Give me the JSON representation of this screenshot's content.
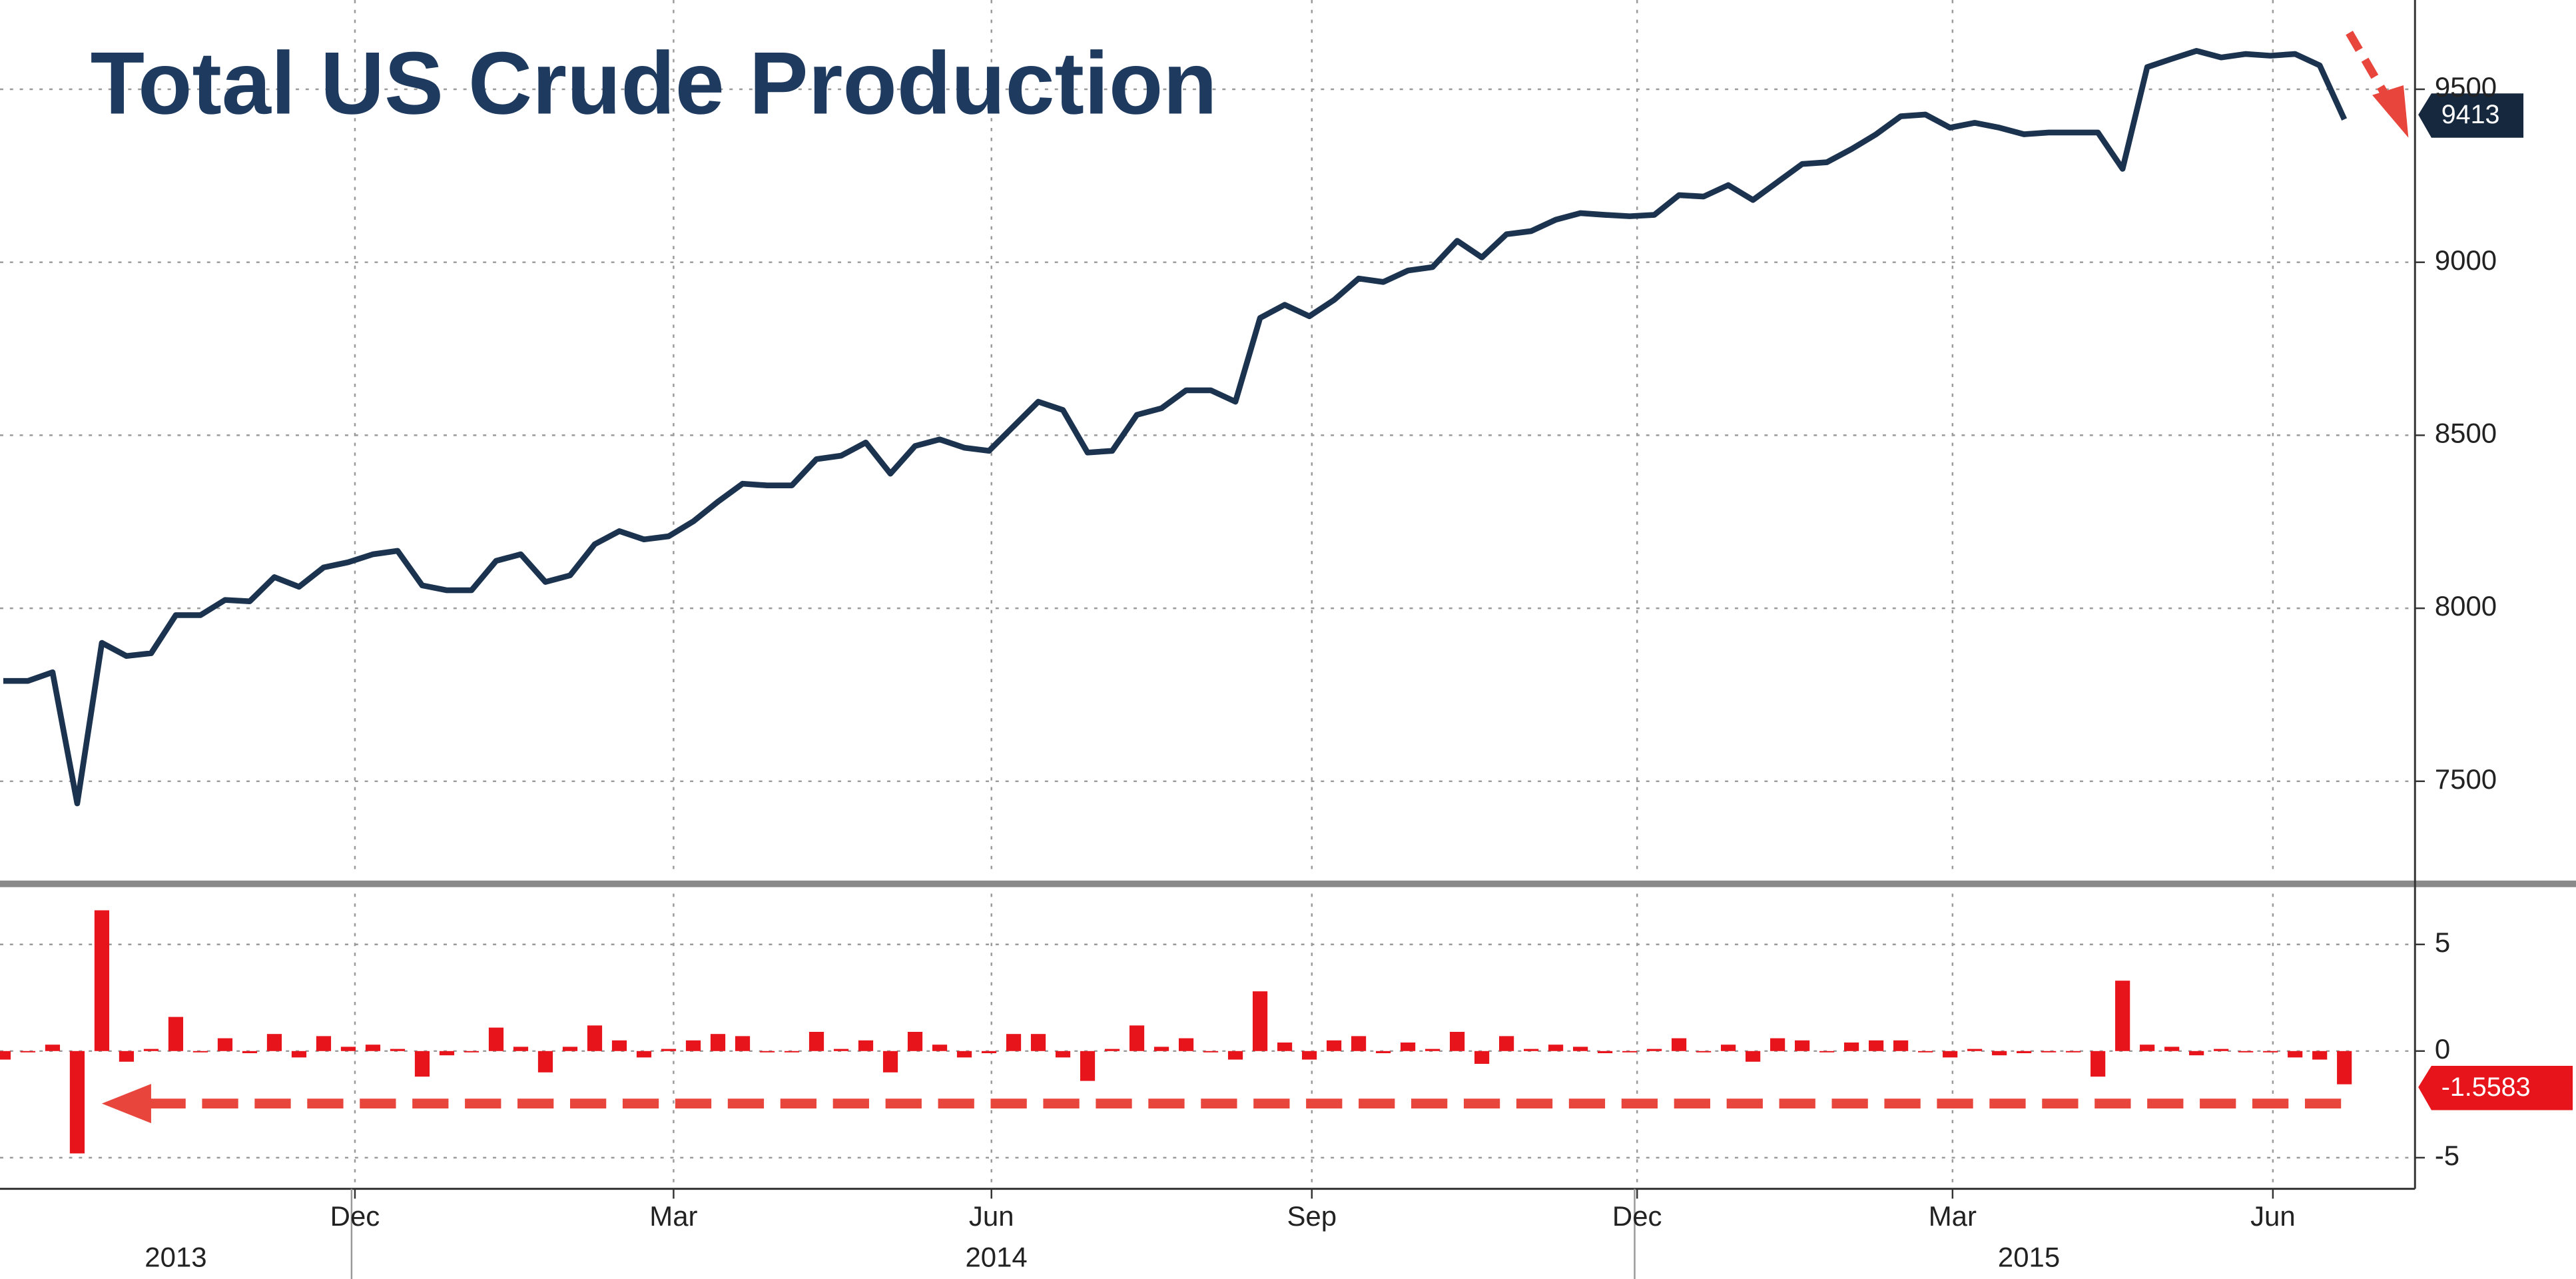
{
  "chart_data": [
    {
      "type": "line",
      "title": "Total US Crude Production",
      "color": "#1c3350",
      "categories": [
        null,
        null,
        null,
        null,
        null,
        null,
        null,
        null,
        null,
        null,
        null,
        null,
        null,
        null,
        null,
        null,
        null,
        null,
        null,
        null,
        null,
        null,
        null,
        null,
        null,
        null,
        null,
        null,
        null,
        null,
        null,
        null,
        null,
        null,
        null,
        null,
        null,
        null,
        null,
        null,
        null,
        null,
        null,
        null,
        null,
        null,
        null,
        null,
        null,
        null,
        null,
        null,
        null,
        null,
        null,
        null,
        null,
        null,
        null,
        null,
        null,
        null,
        null,
        null,
        null,
        null,
        null,
        null,
        null,
        null,
        null,
        null,
        null,
        null,
        null,
        null,
        null,
        null,
        null,
        null,
        null,
        null,
        null,
        null,
        null,
        null,
        null,
        null,
        null,
        null,
        null,
        null,
        null,
        null,
        null,
        null
      ],
      "values": [
        7790,
        7790,
        7815,
        7436,
        7900,
        7862,
        7870,
        7980,
        7980,
        8024,
        8020,
        8090,
        8062,
        8118,
        8133,
        8156,
        8166,
        8066,
        8052,
        8052,
        8137,
        8156,
        8076,
        8095,
        8185,
        8223,
        8199,
        8208,
        8251,
        8308,
        8360,
        8355,
        8355,
        8431,
        8441,
        8479,
        8389,
        8469,
        8488,
        8464,
        8455,
        8526,
        8597,
        8573,
        8450,
        8455,
        8559,
        8578,
        8630,
        8630,
        8597,
        8839,
        8877,
        8844,
        8891,
        8953,
        8943,
        8976,
        8986,
        9062,
        9014,
        9081,
        9090,
        9123,
        9142,
        9137,
        9133,
        9137,
        9194,
        9190,
        9223,
        9180,
        9232,
        9284,
        9289,
        9327,
        9370,
        9422,
        9427,
        9389,
        9403,
        9389,
        9370,
        9375,
        9375,
        9375,
        9270,
        9564,
        9588,
        9611,
        9592,
        9602,
        9597,
        9602,
        9569,
        9413
      ],
      "ylim": [
        7232,
        9758
      ],
      "yticks": [
        7500,
        8000,
        8500,
        9000,
        9500
      ],
      "grid": true
    },
    {
      "type": "bar",
      "color": "#e8141c",
      "categories": [
        null,
        null,
        null,
        null,
        null,
        null,
        null,
        null,
        null,
        null,
        null,
        null,
        null,
        null,
        null,
        null,
        null,
        null,
        null,
        null,
        null,
        null,
        null,
        null,
        null,
        null,
        null,
        null,
        null,
        null,
        null,
        null,
        null,
        null,
        null,
        null,
        null,
        null,
        null,
        null,
        null,
        null,
        null,
        null,
        null,
        null,
        null,
        null,
        null,
        null,
        null,
        null,
        null,
        null,
        null,
        null,
        null,
        null,
        null,
        null,
        null,
        null,
        null,
        null,
        null,
        null,
        null,
        null,
        null,
        null,
        null,
        null,
        null,
        null,
        null,
        null,
        null,
        null,
        null,
        null,
        null,
        null,
        null,
        null,
        null,
        null,
        null,
        null,
        null,
        null,
        null,
        null,
        null,
        null,
        null,
        null
      ],
      "values": [
        -0.4,
        0,
        0.3,
        -4.8,
        6.6,
        -0.5,
        0.1,
        1.6,
        0,
        0.6,
        -0.1,
        0.8,
        -0.3,
        0.7,
        0.2,
        0.3,
        0.1,
        -1.2,
        -0.2,
        0,
        1.1,
        0.2,
        -1.0,
        0.2,
        1.2,
        0.5,
        -0.3,
        0.1,
        0.5,
        0.8,
        0.7,
        0,
        0,
        0.9,
        0.1,
        0.5,
        -1.0,
        0.9,
        0.3,
        -0.3,
        -0.1,
        0.8,
        0.8,
        -0.3,
        -1.4,
        0.1,
        1.2,
        0.2,
        0.6,
        0,
        -0.4,
        2.8,
        0.4,
        -0.4,
        0.5,
        0.7,
        -0.1,
        0.4,
        0.1,
        0.9,
        -0.6,
        0.7,
        0.1,
        0.3,
        0.2,
        -0.1,
        0,
        0.1,
        0.6,
        0,
        0.3,
        -0.5,
        0.6,
        0.5,
        0,
        0.4,
        0.5,
        0.5,
        0,
        -0.3,
        0.1,
        -0.2,
        -0.1,
        0,
        0,
        -1.2,
        3.3,
        0.3,
        0.2,
        -0.2,
        0.1,
        0,
        0,
        -0.3,
        -0.4,
        -1.5583
      ],
      "ylim": [
        -6.46,
        7.38
      ],
      "yticks": [
        -5,
        0,
        5
      ],
      "grid": true,
      "xticks": [
        {
          "value": 14.27,
          "label": "Dec"
        },
        {
          "value": 27.2,
          "label": "Mar"
        },
        {
          "value": 40.1,
          "label": "Jun"
        },
        {
          "value": 53.1,
          "label": "Sep"
        },
        {
          "value": 66.3,
          "label": "Dec"
        },
        {
          "value": 79.1,
          "label": "Mar"
        },
        {
          "value": 92.1,
          "label": "Jun"
        }
      ],
      "year_ticks": [
        {
          "value": 7,
          "label": "2013"
        },
        {
          "value": 40.3,
          "label": "2014"
        },
        {
          "value": 82.2,
          "label": "2015"
        }
      ]
    }
  ]
}
